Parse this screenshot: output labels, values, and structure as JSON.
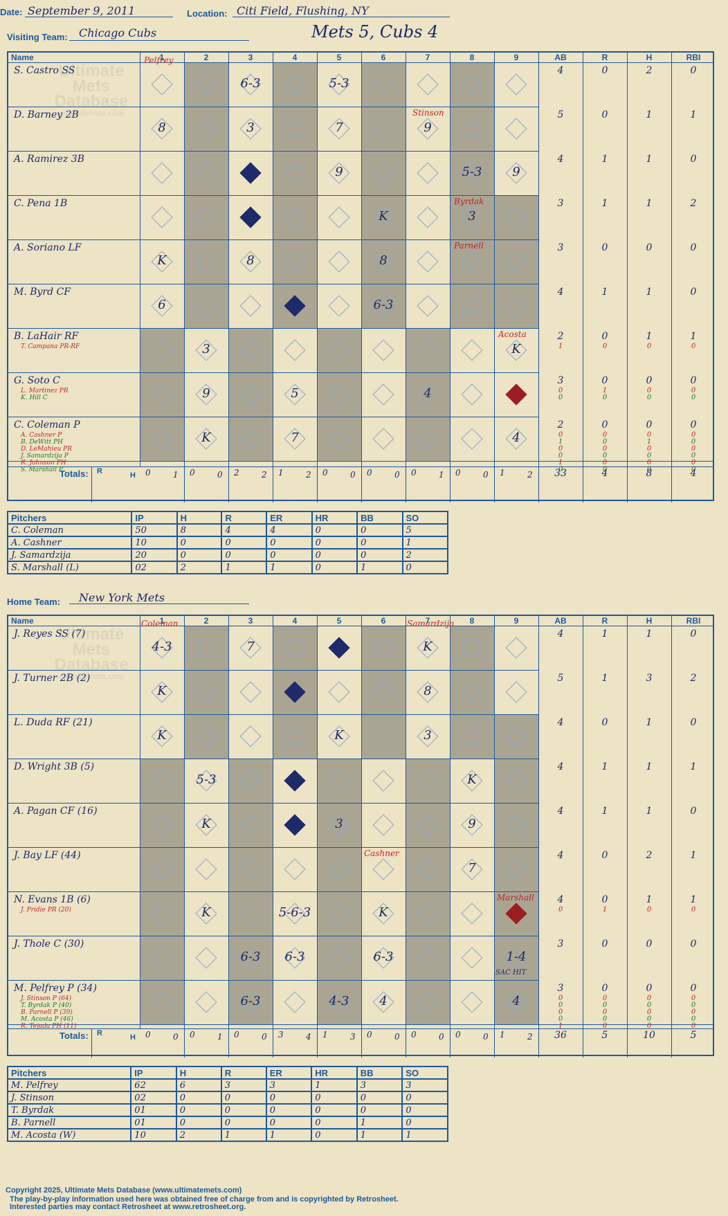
{
  "header": {
    "date_label": "Date:",
    "date": "September 9, 2011",
    "location_label": "Location:",
    "location": "Citi Field, Flushing, NY",
    "score_title": "Mets 5, Cubs 4"
  },
  "visiting": {
    "team_label": "Visiting Team:",
    "team": "Chicago Cubs",
    "columns": [
      "Name",
      "1",
      "2",
      "3",
      "4",
      "5",
      "6",
      "7",
      "8",
      "9",
      "AB",
      "R",
      "H",
      "RBI"
    ],
    "players": [
      {
        "name": "S. Castro SS",
        "subs": [],
        "stats": [
          "4",
          "0",
          "2",
          "0"
        ]
      },
      {
        "name": "D. Barney 2B",
        "subs": [],
        "stats": [
          "5",
          "0",
          "1",
          "1"
        ]
      },
      {
        "name": "A. Ramirez 3B",
        "subs": [],
        "stats": [
          "4",
          "1",
          "1",
          "0"
        ]
      },
      {
        "name": "C. Pena 1B",
        "subs": [],
        "stats": [
          "3",
          "1",
          "1",
          "2"
        ]
      },
      {
        "name": "A. Soriano LF",
        "subs": [],
        "stats": [
          "3",
          "0",
          "0",
          "0"
        ]
      },
      {
        "name": "M. Byrd CF",
        "subs": [],
        "stats": [
          "4",
          "1",
          "1",
          "0"
        ]
      },
      {
        "name": "B. LaHair RF",
        "subs": [
          {
            "name": "T. Campana PR-RF",
            "stats": [
              "1",
              "0",
              "0",
              "0"
            ]
          }
        ],
        "stats": [
          "2",
          "0",
          "1",
          "1"
        ]
      },
      {
        "name": "G. Soto C",
        "subs": [
          {
            "name": "L. Martinez PR",
            "stats": [
              "0",
              "1",
              "0",
              "0"
            ]
          },
          {
            "name": "K. Hill C",
            "stats": [
              "0",
              "0",
              "0",
              "0"
            ]
          }
        ],
        "stats": [
          "3",
          "0",
          "0",
          "0"
        ]
      },
      {
        "name": "C. Coleman P",
        "subs": [
          {
            "name": "A. Cashner P",
            "stats": [
              "0",
              "0",
              "0",
              "0"
            ]
          },
          {
            "name": "B. DeWitt PH",
            "stats": [
              "1",
              "0",
              "1",
              "0"
            ]
          },
          {
            "name": "D. LeMahieu PR",
            "stats": [
              "0",
              "0",
              "0",
              "0"
            ]
          },
          {
            "name": "J. Samardzija P",
            "stats": [
              "0",
              "0",
              "0",
              "0"
            ]
          },
          {
            "name": "R. Johnson PH",
            "stats": [
              "1",
              "0",
              "0",
              "0"
            ]
          },
          {
            "name": "S. Marshall P",
            "stats": [
              "0",
              "0",
              "0",
              "0"
            ]
          }
        ],
        "stats": [
          "2",
          "0",
          "0",
          "0"
        ]
      }
    ],
    "totals_label": "Totals:",
    "rh_label_r": "R",
    "rh_label_h": "H",
    "inning_totals": [
      [
        "0",
        "1"
      ],
      [
        "0",
        "0"
      ],
      [
        "2",
        "2"
      ],
      [
        "1",
        "2"
      ],
      [
        "0",
        "0"
      ],
      [
        "0",
        "0"
      ],
      [
        "0",
        "1"
      ],
      [
        "0",
        "0"
      ],
      [
        "1",
        "2"
      ]
    ],
    "totals": [
      "33",
      "4",
      "8",
      "4"
    ],
    "pitch_cols": [
      "Pitchers",
      "IP",
      "H",
      "R",
      "ER",
      "HR",
      "BB",
      "SO"
    ],
    "pitchers": [
      [
        "C. Coleman",
        "50",
        "8",
        "4",
        "4",
        "0",
        "0",
        "5"
      ],
      [
        "A. Cashner",
        "10",
        "0",
        "0",
        "0",
        "0",
        "0",
        "1"
      ],
      [
        "J. Samardzija",
        "20",
        "0",
        "0",
        "0",
        "0",
        "0",
        "2"
      ],
      [
        "S. Marshall (L)",
        "02",
        "2",
        "1",
        "1",
        "0",
        "1",
        "0"
      ]
    ]
  },
  "home": {
    "team_label": "Home Team:",
    "team": "New York Mets",
    "players": [
      {
        "name": "J. Reyes SS (7)",
        "subs": [],
        "stats": [
          "4",
          "1",
          "1",
          "0"
        ]
      },
      {
        "name": "J. Turner 2B (2)",
        "subs": [],
        "stats": [
          "5",
          "1",
          "3",
          "2"
        ]
      },
      {
        "name": "L. Duda RF (21)",
        "subs": [],
        "stats": [
          "4",
          "0",
          "1",
          "0"
        ]
      },
      {
        "name": "D. Wright 3B (5)",
        "subs": [],
        "stats": [
          "4",
          "1",
          "1",
          "1"
        ]
      },
      {
        "name": "A. Pagan CF (16)",
        "subs": [],
        "stats": [
          "4",
          "1",
          "1",
          "0"
        ]
      },
      {
        "name": "J. Bay LF (44)",
        "subs": [],
        "stats": [
          "4",
          "0",
          "2",
          "1"
        ]
      },
      {
        "name": "N. Evans 1B (6)",
        "subs": [
          {
            "name": "J. Pridie PR (20)",
            "stats": [
              "0",
              "1",
              "0",
              "0"
            ]
          }
        ],
        "stats": [
          "4",
          "0",
          "1",
          "1"
        ]
      },
      {
        "name": "J. Thole C (30)",
        "subs": [],
        "stats": [
          "3",
          "0",
          "0",
          "0"
        ]
      },
      {
        "name": "M. Pelfrey P (34)",
        "subs": [
          {
            "name": "J. Stinson P (64)",
            "stats": [
              "0",
              "0",
              "0",
              "0"
            ]
          },
          {
            "name": "T. Byrdak P (40)",
            "stats": [
              "0",
              "0",
              "0",
              "0"
            ]
          },
          {
            "name": "B. Parnell P (39)",
            "stats": [
              "0",
              "0",
              "0",
              "0"
            ]
          },
          {
            "name": "M. Acosta P (46)",
            "stats": [
              "0",
              "0",
              "0",
              "0"
            ]
          },
          {
            "name": "R. Tejada PH (11)",
            "stats": [
              "1",
              "0",
              "0",
              "0"
            ]
          }
        ],
        "stats": [
          "3",
          "0",
          "0",
          "0"
        ]
      }
    ],
    "inning_totals": [
      [
        "0",
        "0"
      ],
      [
        "0",
        "1"
      ],
      [
        "0",
        "0"
      ],
      [
        "3",
        "4"
      ],
      [
        "1",
        "3"
      ],
      [
        "0",
        "0"
      ],
      [
        "0",
        "0"
      ],
      [
        "0",
        "0"
      ],
      [
        "1",
        "2"
      ]
    ],
    "totals": [
      "36",
      "5",
      "10",
      "5"
    ],
    "pitchers": [
      [
        "M. Pelfrey",
        "62",
        "6",
        "3",
        "3",
        "1",
        "3",
        "3"
      ],
      [
        "J. Stinson",
        "02",
        "0",
        "0",
        "0",
        "0",
        "0",
        "0"
      ],
      [
        "T. Byrdak",
        "01",
        "0",
        "0",
        "0",
        "0",
        "0",
        "0"
      ],
      [
        "B. Parnell",
        "01",
        "0",
        "0",
        "0",
        "0",
        "1",
        "0"
      ],
      [
        "M. Acosta (W)",
        "10",
        "2",
        "1",
        "1",
        "0",
        "1",
        "1"
      ]
    ]
  },
  "plays_visiting": [
    [
      "",
      "",
      "6-3",
      "",
      "5-3",
      "",
      "",
      "",
      ""
    ],
    [
      "8",
      "",
      "3",
      "",
      "7",
      "",
      "9",
      "",
      ""
    ],
    [
      "",
      "",
      "",
      "",
      "9",
      "",
      "",
      "5-3",
      "9"
    ],
    [
      "",
      "",
      "",
      "",
      "",
      "K",
      "",
      "3",
      ""
    ],
    [
      "K",
      "",
      "8",
      "",
      "",
      "8",
      "",
      "",
      ""
    ],
    [
      "6",
      "",
      "",
      "",
      "",
      "6-3",
      "",
      "",
      ""
    ],
    [
      "",
      "3",
      "",
      "",
      "",
      "",
      "",
      "",
      "K"
    ],
    [
      "",
      "9",
      "",
      "5",
      "",
      "",
      "4",
      "",
      ""
    ],
    [
      "",
      "K",
      "",
      "7",
      "",
      "",
      "",
      "",
      "4"
    ]
  ],
  "plays_home": [
    [
      "4-3",
      "",
      "7",
      "",
      "",
      "",
      "K",
      "",
      ""
    ],
    [
      "K",
      "",
      "",
      "",
      "",
      "",
      "8",
      "",
      ""
    ],
    [
      "K",
      "",
      "",
      "",
      "K",
      "",
      "3",
      "",
      ""
    ],
    [
      "",
      "5-3",
      "",
      "",
      "",
      "",
      "",
      "K",
      ""
    ],
    [
      "",
      "K",
      "",
      "",
      "3",
      "",
      "",
      "9",
      ""
    ],
    [
      "",
      "",
      "",
      "",
      "",
      "",
      "",
      "7",
      ""
    ],
    [
      "",
      "K",
      "",
      "5-6-3",
      "",
      "K",
      "",
      "",
      ""
    ],
    [
      "",
      "",
      "6-3",
      "6-3",
      "",
      "6-3",
      "",
      "",
      "1-4"
    ],
    [
      "",
      "",
      "6-3",
      "",
      "4-3",
      "4",
      "",
      "",
      "4"
    ]
  ],
  "annotations": {
    "pelfrey": "Pelfrey",
    "stinson": "Stinson",
    "byrdak": "Byrdak",
    "parnell": "Parnell",
    "acosta": "Acosta",
    "coleman": "Coleman",
    "samardzija": "Samardzija",
    "cashner": "Cashner",
    "marshall": "Marshall",
    "sac_hit": "SAC HIT"
  },
  "watermark": [
    "Ultimate",
    "Mets",
    "Database",
    "ultimatemets.com"
  ],
  "footer": [
    "Copyright 2025, Ultimate Mets Database (www.ultimatemets.com)",
    "The play-by-play information used here was obtained free of charge from and is copyrighted by Retrosheet.",
    "Interested parties may contact Retrosheet at www.retrosheet.org."
  ],
  "colors": {
    "ink": "#1a2a6b",
    "grid": "#1d5a9c",
    "shade": "#aaa593",
    "paper": "#ede3c5",
    "red": "#c0262b",
    "green": "#1c7a2a"
  }
}
